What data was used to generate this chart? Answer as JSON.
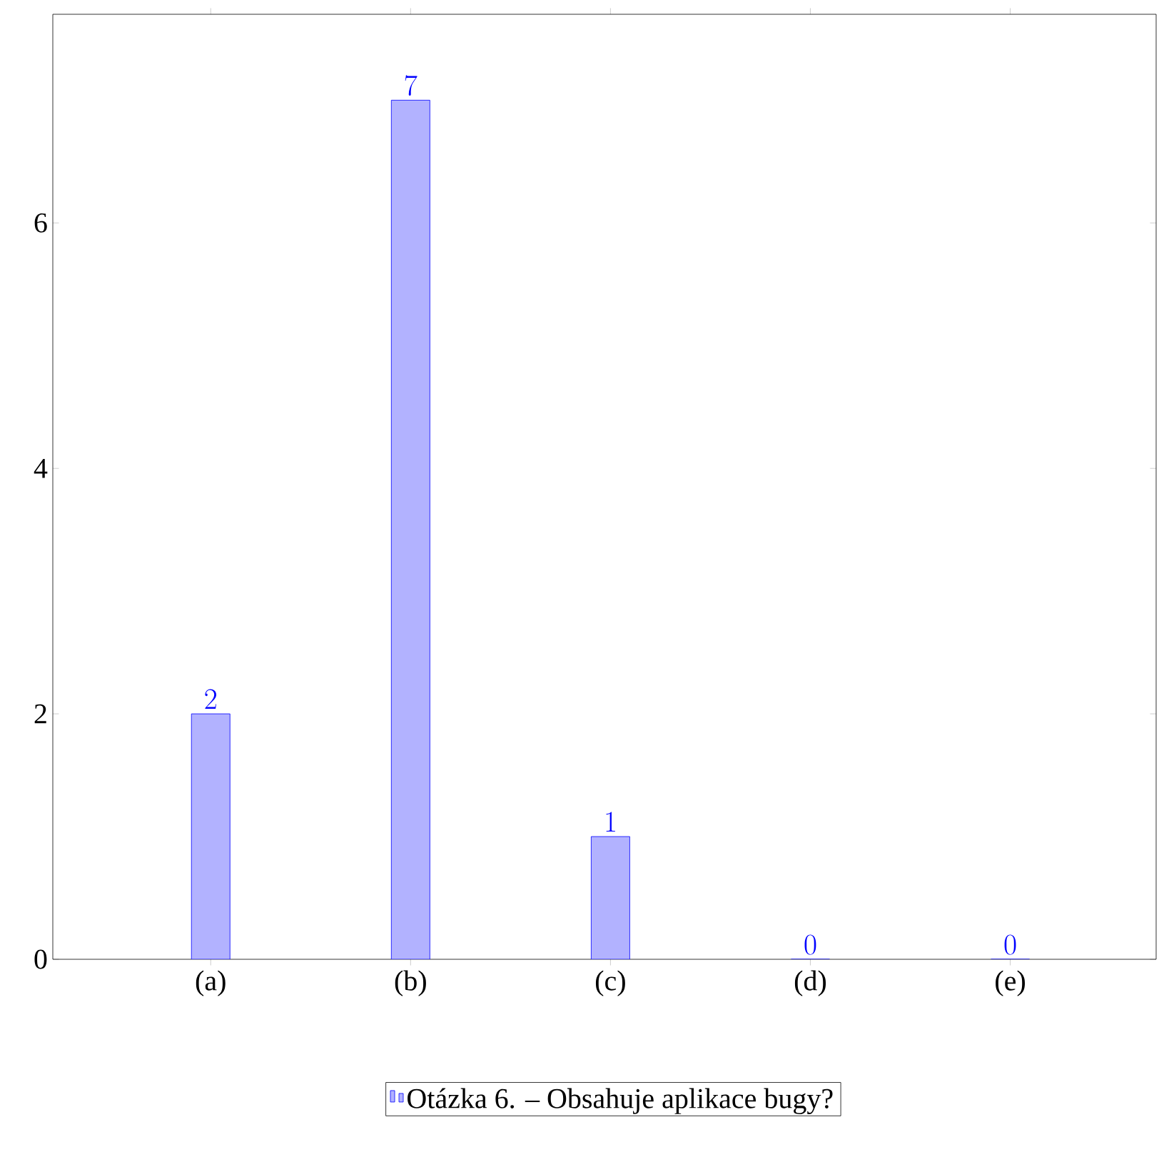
{
  "chart_data": {
    "type": "bar",
    "categories": [
      "(a)",
      "(b)",
      "(c)",
      "(d)",
      "(e)"
    ],
    "series": [
      {
        "name": "Otázka 6. – Obsahuje aplikace bugy?",
        "color": "#0000ff",
        "values": [
          2,
          7,
          1,
          0,
          0
        ]
      }
    ],
    "ylim": [
      0,
      7.7
    ],
    "yticks": [
      0,
      2,
      4,
      6
    ],
    "data_labels": true,
    "grid": false,
    "legend": "bottom"
  }
}
